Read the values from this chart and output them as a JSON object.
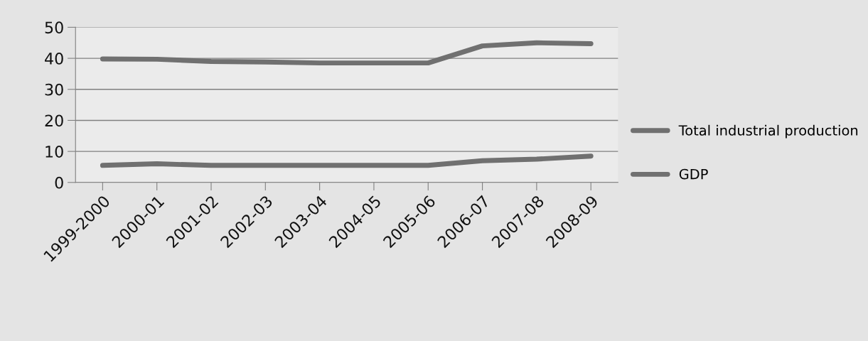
{
  "chart_data": {
    "type": "line",
    "categories": [
      "1999-2000",
      "2000-01",
      "2001-02",
      "2002-03",
      "2003-04",
      "2004-05",
      "2005-06",
      "2006-07",
      "2007-08",
      "2008-09"
    ],
    "series": [
      {
        "name": "Total industrial production",
        "color": "#707070",
        "values": [
          39.8,
          39.7,
          39.0,
          38.8,
          38.5,
          38.5,
          38.5,
          44.0,
          45.0,
          44.7
        ]
      },
      {
        "name": "GDP",
        "color": "#707070",
        "values": [
          5.5,
          6.0,
          5.5,
          5.5,
          5.5,
          5.5,
          5.5,
          7.0,
          7.5,
          8.5
        ]
      }
    ],
    "ylim": [
      0,
      50
    ],
    "yticks": [
      0,
      10,
      20,
      30,
      40,
      50
    ],
    "grid": "y",
    "legend": "right",
    "marker": "none",
    "line_style": "solid"
  }
}
